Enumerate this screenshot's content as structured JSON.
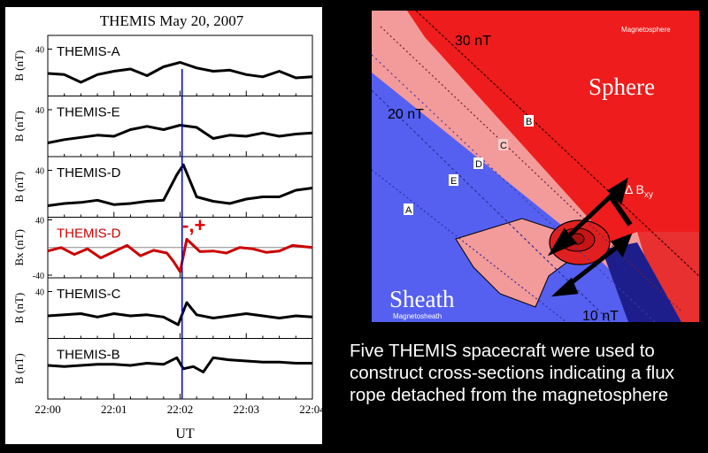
{
  "left_panel": {
    "title": "THEMIS May 20, 2007",
    "x_axis_label": "UT",
    "annotation": "-,+"
  },
  "chart_data": {
    "type": "line",
    "title": "THEMIS May 20, 2007",
    "xlabel": "UT",
    "x_ticks": [
      "22:00",
      "22:01",
      "22:02",
      "22:03",
      "22:04"
    ],
    "xlim": [
      0,
      4
    ],
    "event_line_x": 2.03,
    "panels": [
      {
        "name": "THEMIS-A",
        "ylabel": "B (nT)",
        "ylim": [
          0,
          50
        ],
        "y_ticks": [
          40
        ],
        "color": "#000000",
        "x": [
          0,
          0.25,
          0.5,
          0.75,
          1.0,
          1.25,
          1.5,
          1.75,
          2.0,
          2.25,
          2.5,
          2.75,
          3.0,
          3.25,
          3.5,
          3.75,
          4.0
        ],
        "values": [
          18,
          17,
          10,
          17,
          20,
          22,
          16,
          24,
          28,
          23,
          20,
          21,
          17,
          15,
          20,
          14,
          15
        ]
      },
      {
        "name": "THEMIS-E",
        "ylabel": "B (nT)",
        "ylim": [
          0,
          50
        ],
        "y_ticks": [
          40
        ],
        "color": "#000000",
        "x": [
          0,
          0.25,
          0.5,
          0.75,
          1.0,
          1.25,
          1.5,
          1.75,
          2.0,
          2.25,
          2.5,
          2.75,
          3.0,
          3.25,
          3.5,
          3.75,
          4.0
        ],
        "values": [
          10,
          13,
          15,
          17,
          16,
          22,
          25,
          22,
          26,
          24,
          14,
          17,
          16,
          19,
          16,
          18,
          19
        ]
      },
      {
        "name": "THEMIS-D",
        "ylabel": "B (nT)",
        "ylim": [
          0,
          50
        ],
        "y_ticks": [
          40
        ],
        "color": "#000000",
        "x": [
          0,
          0.25,
          0.5,
          0.75,
          1.0,
          1.25,
          1.5,
          1.75,
          1.95,
          2.05,
          2.25,
          2.5,
          2.75,
          3.0,
          3.25,
          3.5,
          3.75,
          4.0
        ],
        "values": [
          8,
          10,
          11,
          13,
          9,
          10,
          12,
          13,
          36,
          45,
          16,
          12,
          10,
          14,
          16,
          16,
          22,
          24
        ]
      },
      {
        "name": "THEMIS-D",
        "ylabel": "Bx (nT)",
        "ylim": [
          -40,
          40
        ],
        "y_ticks": [
          40,
          -40
        ],
        "zero_line": true,
        "color": "#cc0000",
        "x": [
          0,
          0.2,
          0.4,
          0.6,
          0.8,
          1.0,
          1.2,
          1.4,
          1.6,
          1.8,
          1.9,
          2.0,
          2.1,
          2.3,
          2.5,
          2.7,
          2.9,
          3.1,
          3.3,
          3.5,
          3.7,
          4.0
        ],
        "values": [
          -5,
          0,
          -10,
          -2,
          -15,
          -6,
          3,
          -12,
          -4,
          -8,
          -20,
          -35,
          12,
          -6,
          -5,
          -8,
          0,
          -2,
          -7,
          -5,
          3,
          0
        ]
      },
      {
        "name": "THEMIS-C",
        "ylabel": "B (nT)",
        "ylim": [
          0,
          50
        ],
        "y_ticks": [
          40
        ],
        "color": "#000000",
        "x": [
          0,
          0.25,
          0.5,
          0.75,
          1.0,
          1.25,
          1.5,
          1.75,
          1.97,
          2.1,
          2.25,
          2.5,
          2.75,
          3.0,
          3.25,
          3.5,
          3.75,
          4.0
        ],
        "values": [
          18,
          19,
          20,
          17,
          20,
          18,
          19,
          17,
          10,
          30,
          19,
          16,
          18,
          20,
          18,
          16,
          18,
          17
        ]
      },
      {
        "name": "THEMIS-B",
        "ylabel": "B (nT)",
        "ylim": [
          0,
          50
        ],
        "y_ticks": [],
        "color": "#000000",
        "x": [
          0,
          0.25,
          0.5,
          0.75,
          1.0,
          1.25,
          1.5,
          1.75,
          1.95,
          2.05,
          2.2,
          2.35,
          2.5,
          2.75,
          3.0,
          3.25,
          3.5,
          3.75,
          4.0
        ],
        "values": [
          28,
          27,
          28,
          29,
          29,
          28,
          30,
          29,
          35,
          25,
          27,
          22,
          35,
          33,
          32,
          31,
          31,
          30,
          30
        ]
      }
    ]
  },
  "diagram": {
    "region_labels": {
      "sphere": "Sphere",
      "sheath": "Sheath",
      "magnetosphere_small": "Magnetosphere",
      "magnetosheath_small": "Magnetosheath"
    },
    "contour_labels": {
      "c30": "30 nT",
      "c20": "20 nT",
      "c10": "10 nT"
    },
    "spacecraft_labels": {
      "a": "A",
      "b": "B",
      "c": "C",
      "d": "D",
      "e": "E"
    },
    "delta_label": "Δ B",
    "delta_sub": "xy",
    "colors": {
      "sphere": "#ee1c1c",
      "sheath": "#5560f0",
      "sheath_dark": "#1d1e8c",
      "transition": "#f39a9a",
      "rope": "#e02020"
    }
  },
  "caption": {
    "text": "Five THEMIS spacecraft were used to construct cross-sections indicating a flux rope detached from the magnetosphere"
  }
}
